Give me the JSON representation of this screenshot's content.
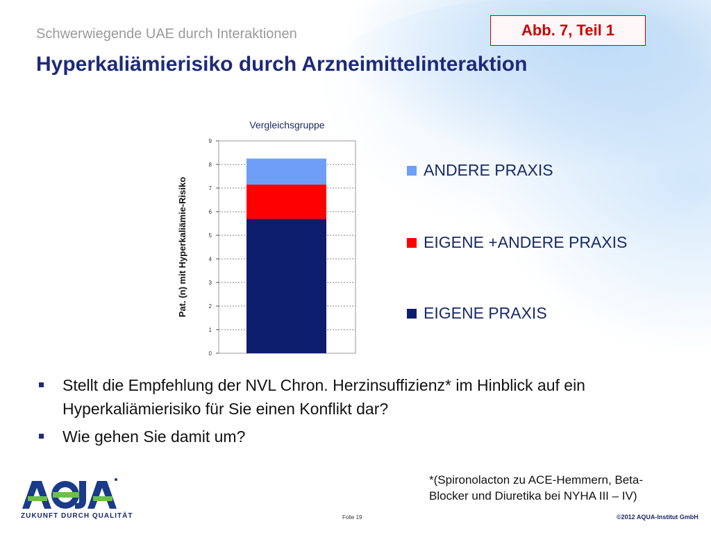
{
  "header": {
    "subtitle": "Schwerwiegende UAE durch Interaktionen",
    "title": "Hyperkaliämierisiko durch Arzneimittelinteraktion",
    "badge": "Abb. 7, Teil 1"
  },
  "chart_data": {
    "type": "bar",
    "stacked": true,
    "title": "Vergleichsgruppe",
    "ylabel": "Pat. (n) mit Hyperkaliämie-Risiko",
    "xlabel": "",
    "ylim": [
      0,
      9
    ],
    "yticks": [
      "0",
      "1",
      "2",
      "3",
      "4",
      "5",
      "6",
      "7",
      "8",
      "9"
    ],
    "grid": true,
    "categories": [
      ""
    ],
    "series": [
      {
        "name": "EIGENE PRAXIS",
        "values": [
          5.7
        ],
        "color": "#0d1d6e"
      },
      {
        "name": "EIGENE +ANDERE PRAXIS",
        "values": [
          1.45
        ],
        "color": "#ff0000"
      },
      {
        "name": "ANDERE PRAXIS",
        "values": [
          1.1
        ],
        "color": "#6f9ef7"
      }
    ],
    "legend_position": "right"
  },
  "legend": [
    {
      "label": "ANDERE PRAXIS",
      "color": "#6f9ef7"
    },
    {
      "label": "EIGENE +ANDERE PRAXIS",
      "color": "#ff0000"
    },
    {
      "label": "EIGENE PRAXIS",
      "color": "#0d1d6e"
    }
  ],
  "bullets": [
    "Stellt die Empfehlung der NVL Chron. Herzinsuffizienz* im Hinblick auf ein Hyperkaliämierisiko für Sie einen Konflikt dar?",
    "Wie gehen Sie damit um?"
  ],
  "footnote": "*(Spironolacton zu ACE-Hemmern, Beta-Blocker und Diuretika bei NYHA III – IV)",
  "footer": {
    "logo_text": "AQUA",
    "tagline": "ZUKUNFT DURCH QUALITÄT",
    "slide_number": "Folie 19",
    "copyright": "©2012 AQUA-Institut GmbH"
  }
}
